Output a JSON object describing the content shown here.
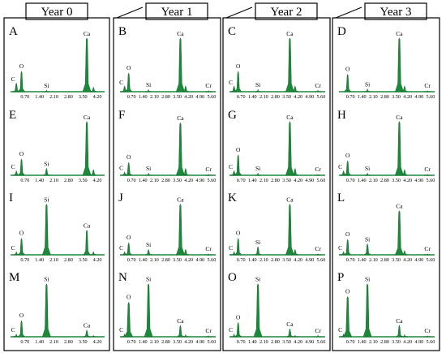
{
  "chart_data": {
    "type": "spectrum-grid",
    "columns": [
      "Year 0",
      "Year 1",
      "Year 2",
      "Year 3"
    ],
    "colors": {
      "peak": "#1a8a3a",
      "peak_edge": "#0d5a20",
      "baseline": "#1a8a3a",
      "frame": "#000000"
    },
    "xticks_by_column": [
      [
        "0.70",
        "1.40",
        "2.10",
        "2.80",
        "3.50",
        "4.20"
      ],
      [
        "0.70",
        "1.40",
        "2.10",
        "2.80",
        "3.50",
        "4.20",
        "4.90",
        "5.60"
      ],
      [
        "0.70",
        "1.40",
        "2.10",
        "2.80",
        "3.50",
        "4.20",
        "4.90",
        "5.60"
      ],
      [
        "0.70",
        "1.40",
        "2.10",
        "2.80",
        "3.50",
        "4.20",
        "4.90",
        "5.60"
      ]
    ],
    "xmax_by_column": [
      4.55,
      5.85,
      5.85,
      5.85
    ],
    "panels": [
      {
        "label": "A",
        "row": 0,
        "col": 0,
        "peaks": [
          {
            "el": "C",
            "x": 0.28,
            "h": 0.15
          },
          {
            "el": "O",
            "x": 0.53,
            "h": 0.35
          },
          {
            "el": "Si",
            "x": 1.74,
            "h": 0.03
          },
          {
            "el": "Ca",
            "x": 3.69,
            "h": 0.92
          },
          {
            "el": "",
            "x": 4.01,
            "h": 0.08
          }
        ]
      },
      {
        "label": "B",
        "row": 0,
        "col": 1,
        "peaks": [
          {
            "el": "C",
            "x": 0.28,
            "h": 0.1
          },
          {
            "el": "O",
            "x": 0.53,
            "h": 0.32
          },
          {
            "el": "Si",
            "x": 1.74,
            "h": 0.04
          },
          {
            "el": "Ca",
            "x": 3.69,
            "h": 0.92
          },
          {
            "el": "",
            "x": 4.01,
            "h": 0.1
          },
          {
            "el": "Cr",
            "x": 5.41,
            "h": 0.02
          }
        ]
      },
      {
        "label": "C",
        "row": 0,
        "col": 2,
        "peaks": [
          {
            "el": "C",
            "x": 0.28,
            "h": 0.1
          },
          {
            "el": "O",
            "x": 0.53,
            "h": 0.35
          },
          {
            "el": "Si",
            "x": 1.74,
            "h": 0.04
          },
          {
            "el": "Ca",
            "x": 3.69,
            "h": 0.92
          },
          {
            "el": "",
            "x": 4.01,
            "h": 0.1
          },
          {
            "el": "Cr",
            "x": 5.41,
            "h": 0.03
          }
        ]
      },
      {
        "label": "D",
        "row": 0,
        "col": 3,
        "peaks": [
          {
            "el": "O",
            "x": 0.53,
            "h": 0.3
          },
          {
            "el": "Si",
            "x": 1.74,
            "h": 0.05
          },
          {
            "el": "Ca",
            "x": 3.69,
            "h": 0.92
          },
          {
            "el": "",
            "x": 4.01,
            "h": 0.1
          },
          {
            "el": "Cr",
            "x": 5.41,
            "h": 0.02
          }
        ]
      },
      {
        "label": "E",
        "row": 1,
        "col": 0,
        "peaks": [
          {
            "el": "C",
            "x": 0.28,
            "h": 0.08
          },
          {
            "el": "O",
            "x": 0.53,
            "h": 0.28
          },
          {
            "el": "Si",
            "x": 1.74,
            "h": 0.12
          },
          {
            "el": "Ca",
            "x": 3.69,
            "h": 0.92
          },
          {
            "el": "",
            "x": 4.01,
            "h": 0.1
          }
        ]
      },
      {
        "label": "F",
        "row": 1,
        "col": 1,
        "peaks": [
          {
            "el": "C",
            "x": 0.28,
            "h": 0.06
          },
          {
            "el": "O",
            "x": 0.53,
            "h": 0.22
          },
          {
            "el": "Si",
            "x": 1.74,
            "h": 0.04
          },
          {
            "el": "Ca",
            "x": 3.69,
            "h": 0.9
          },
          {
            "el": "",
            "x": 4.01,
            "h": 0.12
          },
          {
            "el": "Cr",
            "x": 5.41,
            "h": 0.02
          }
        ]
      },
      {
        "label": "G",
        "row": 1,
        "col": 2,
        "peaks": [
          {
            "el": "C",
            "x": 0.28,
            "h": 0.08
          },
          {
            "el": "O",
            "x": 0.53,
            "h": 0.35
          },
          {
            "el": "Si",
            "x": 1.74,
            "h": 0.04
          },
          {
            "el": "Ca",
            "x": 3.69,
            "h": 0.92
          },
          {
            "el": "",
            "x": 4.01,
            "h": 0.12
          },
          {
            "el": "Cr",
            "x": 5.41,
            "h": 0.02
          }
        ]
      },
      {
        "label": "H",
        "row": 1,
        "col": 3,
        "peaks": [
          {
            "el": "C",
            "x": 0.28,
            "h": 0.08
          },
          {
            "el": "O",
            "x": 0.53,
            "h": 0.25
          },
          {
            "el": "Si",
            "x": 1.74,
            "h": 0.04
          },
          {
            "el": "Ca",
            "x": 3.69,
            "h": 0.92
          },
          {
            "el": "",
            "x": 4.01,
            "h": 0.1
          },
          {
            "el": "Cr",
            "x": 5.41,
            "h": 0.02
          }
        ]
      },
      {
        "label": "I",
        "row": 2,
        "col": 0,
        "peaks": [
          {
            "el": "C",
            "x": 0.28,
            "h": 0.06
          },
          {
            "el": "O",
            "x": 0.53,
            "h": 0.3
          },
          {
            "el": "Si",
            "x": 1.74,
            "h": 0.92
          },
          {
            "el": "Ca",
            "x": 3.69,
            "h": 0.45
          },
          {
            "el": "",
            "x": 4.01,
            "h": 0.06
          }
        ]
      },
      {
        "label": "J",
        "row": 2,
        "col": 1,
        "peaks": [
          {
            "el": "C",
            "x": 0.28,
            "h": 0.06
          },
          {
            "el": "O",
            "x": 0.53,
            "h": 0.22
          },
          {
            "el": "Si",
            "x": 1.74,
            "h": 0.1
          },
          {
            "el": "Ca",
            "x": 3.69,
            "h": 0.92
          },
          {
            "el": "",
            "x": 4.01,
            "h": 0.1
          },
          {
            "el": "Cr",
            "x": 5.41,
            "h": 0.02
          }
        ]
      },
      {
        "label": "K",
        "row": 2,
        "col": 2,
        "peaks": [
          {
            "el": "C",
            "x": 0.28,
            "h": 0.06
          },
          {
            "el": "O",
            "x": 0.53,
            "h": 0.3
          },
          {
            "el": "Si",
            "x": 1.74,
            "h": 0.15
          },
          {
            "el": "Ca",
            "x": 3.69,
            "h": 0.92
          },
          {
            "el": "",
            "x": 4.01,
            "h": 0.1
          },
          {
            "el": "Cr",
            "x": 5.41,
            "h": 0.02
          }
        ]
      },
      {
        "label": "L",
        "row": 2,
        "col": 3,
        "peaks": [
          {
            "el": "C",
            "x": 0.28,
            "h": 0.06
          },
          {
            "el": "O",
            "x": 0.53,
            "h": 0.28
          },
          {
            "el": "Si",
            "x": 1.74,
            "h": 0.2
          },
          {
            "el": "Ca",
            "x": 3.69,
            "h": 0.8
          },
          {
            "el": "",
            "x": 4.01,
            "h": 0.08
          },
          {
            "el": "Cr",
            "x": 5.41,
            "h": 0.02
          }
        ]
      },
      {
        "label": "M",
        "row": 3,
        "col": 0,
        "peaks": [
          {
            "el": "C",
            "x": 0.28,
            "h": 0.05
          },
          {
            "el": "O",
            "x": 0.53,
            "h": 0.28
          },
          {
            "el": "Si",
            "x": 1.74,
            "h": 0.92
          },
          {
            "el": "Ca",
            "x": 3.69,
            "h": 0.12
          },
          {
            "el": "",
            "x": 4.01,
            "h": 0.03
          }
        ]
      },
      {
        "label": "N",
        "row": 3,
        "col": 1,
        "peaks": [
          {
            "el": "C",
            "x": 0.28,
            "h": 0.05
          },
          {
            "el": "O",
            "x": 0.53,
            "h": 0.6
          },
          {
            "el": "Si",
            "x": 1.74,
            "h": 0.92
          },
          {
            "el": "Ca",
            "x": 3.69,
            "h": 0.2
          },
          {
            "el": "",
            "x": 4.01,
            "h": 0.04
          },
          {
            "el": "Cr",
            "x": 5.41,
            "h": 0.02
          }
        ]
      },
      {
        "label": "O",
        "row": 3,
        "col": 2,
        "peaks": [
          {
            "el": "C",
            "x": 0.28,
            "h": 0.05
          },
          {
            "el": "O",
            "x": 0.53,
            "h": 0.25
          },
          {
            "el": "Si",
            "x": 1.74,
            "h": 0.92
          },
          {
            "el": "Ca",
            "x": 3.69,
            "h": 0.14
          },
          {
            "el": "",
            "x": 4.01,
            "h": 0.03
          },
          {
            "el": "Cr",
            "x": 5.41,
            "h": 0.03
          }
        ]
      },
      {
        "label": "P",
        "row": 3,
        "col": 3,
        "peaks": [
          {
            "el": "C",
            "x": 0.28,
            "h": 0.05
          },
          {
            "el": "O",
            "x": 0.53,
            "h": 0.7
          },
          {
            "el": "Si",
            "x": 1.74,
            "h": 0.92
          },
          {
            "el": "Ca",
            "x": 3.69,
            "h": 0.2
          },
          {
            "el": "",
            "x": 4.01,
            "h": 0.04
          },
          {
            "el": "Cr",
            "x": 5.41,
            "h": 0.02
          }
        ]
      }
    ]
  }
}
